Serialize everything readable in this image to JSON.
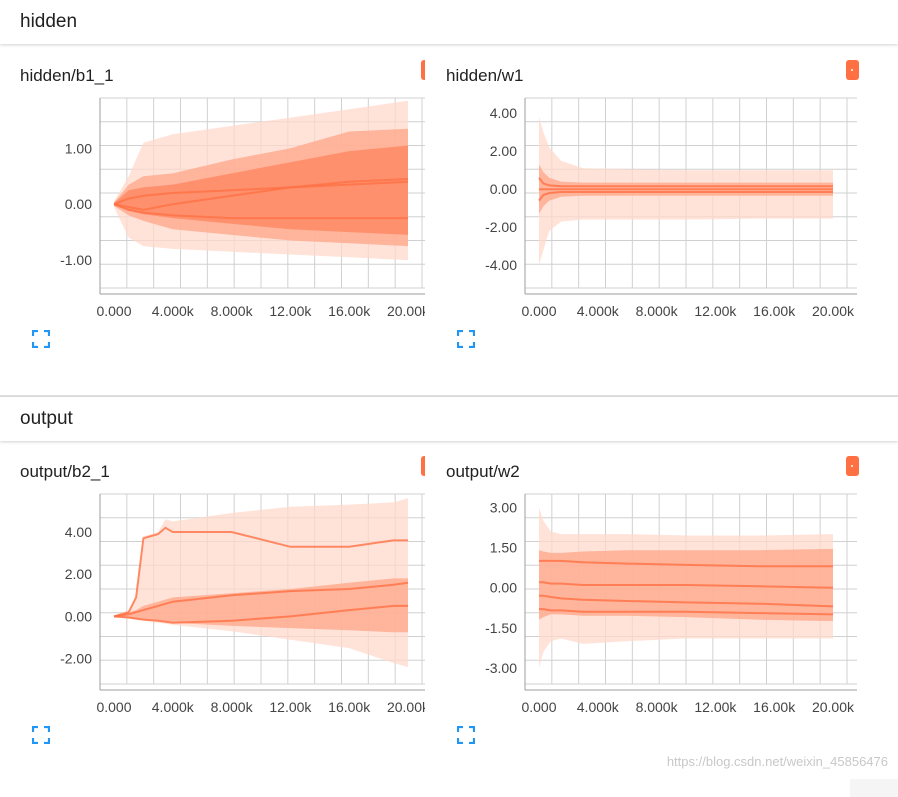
{
  "sections": [
    {
      "title": "hidden",
      "cards": [
        {
          "title": "hidden/b1_1",
          "chart_data": {
            "type": "area",
            "x_ticks": [
              "0.000",
              "4.000k",
              "8.000k",
              "12.00k",
              "16.00k",
              "20.00k"
            ],
            "y_ticks": [
              "1.00",
              "0.00",
              "-1.00"
            ],
            "ylim": [
              -1.5,
              1.9
            ],
            "xlim": [
              0,
              20000
            ],
            "x": [
              0,
              1000,
              2000,
              4000,
              8000,
              12000,
              16000,
              20000
            ],
            "bands": [
              {
                "lower": [
                  -0.05,
                  -0.6,
                  -0.75,
                  -0.8,
                  -0.85,
                  -0.9,
                  -0.95,
                  -1.0
                ],
                "upper": [
                  0.05,
                  0.5,
                  1.1,
                  1.25,
                  1.4,
                  1.55,
                  1.7,
                  1.85
                ]
              },
              {
                "lower": [
                  -0.03,
                  -0.2,
                  -0.3,
                  -0.45,
                  -0.55,
                  -0.65,
                  -0.7,
                  -0.75
                ],
                "upper": [
                  0.03,
                  0.35,
                  0.5,
                  0.55,
                  0.8,
                  1.0,
                  1.3,
                  1.35
                ]
              },
              {
                "lower": [
                  -0.02,
                  -0.12,
                  -0.18,
                  -0.25,
                  -0.35,
                  -0.45,
                  -0.5,
                  -0.55
                ],
                "upper": [
                  0.02,
                  0.25,
                  0.3,
                  0.35,
                  0.55,
                  0.75,
                  0.95,
                  1.05
                ]
              }
            ],
            "lines": [
              [
                0.0,
                -0.05,
                -0.1,
                0.0,
                0.15,
                0.3,
                0.4,
                0.45
              ],
              [
                0.0,
                -0.1,
                -0.15,
                -0.2,
                -0.25,
                -0.25,
                -0.25,
                -0.25
              ],
              [
                0.0,
                0.1,
                0.15,
                0.2,
                0.25,
                0.3,
                0.35,
                0.4
              ]
            ]
          }
        },
        {
          "title": "hidden/w1",
          "chart_data": {
            "type": "area",
            "x_ticks": [
              "0.000",
              "4.000k",
              "8.000k",
              "12.00k",
              "16.00k",
              "20.00k"
            ],
            "y_ticks": [
              "4.00",
              "2.00",
              "0.00",
              "-2.00",
              "-4.00"
            ],
            "ylim": [
              -5.2,
              4.8
            ],
            "xlim": [
              0,
              20000
            ],
            "x": [
              0,
              300,
              700,
              1500,
              3000,
              6000,
              10000,
              15000,
              20000
            ],
            "bands": [
              {
                "lower": [
                  -4.0,
                  -3.2,
                  -2.2,
                  -1.7,
                  -1.6,
                  -1.6,
                  -1.6,
                  -1.55,
                  -1.55
                ],
                "upper": [
                  3.8,
                  3.0,
                  2.2,
                  1.5,
                  1.1,
                  1.05,
                  1.0,
                  1.0,
                  1.0
                ]
              },
              {
                "lower": [
                  -1.3,
                  -0.9,
                  -0.6,
                  -0.4,
                  -0.35,
                  -0.35,
                  -0.35,
                  -0.35,
                  -0.35
                ],
                "upper": [
                  1.3,
                  0.9,
                  0.6,
                  0.4,
                  0.35,
                  0.35,
                  0.35,
                  0.35,
                  0.35
                ]
              }
            ],
            "lines": [
              [
                0.0,
                0.0,
                0.0,
                0.0,
                0.0,
                0.0,
                0.0,
                0.0,
                0.0
              ],
              [
                0.6,
                0.3,
                0.2,
                0.15,
                0.15,
                0.15,
                0.15,
                0.15,
                0.15
              ],
              [
                -0.6,
                -0.3,
                -0.2,
                -0.15,
                -0.15,
                -0.15,
                -0.15,
                -0.15,
                -0.15
              ]
            ]
          }
        }
      ]
    },
    {
      "title": "output",
      "cards": [
        {
          "title": "output/b2_1",
          "chart_data": {
            "type": "area",
            "x_ticks": [
              "0.000",
              "4.000k",
              "8.000k",
              "12.00k",
              "16.00k",
              "20.00k"
            ],
            "y_ticks": [
              "4.00",
              "2.00",
              "0.00",
              "-2.00"
            ],
            "ylim": [
              -3.2,
              5.8
            ],
            "xlim": [
              0,
              20000
            ],
            "x": [
              0,
              1000,
              1500,
              2000,
              3000,
              3500,
              4000,
              8000,
              12000,
              16000,
              19000,
              20000
            ],
            "bands": [
              {
                "lower": [
                  -0.05,
                  -0.1,
                  -0.15,
                  -0.2,
                  -0.3,
                  -0.35,
                  -0.4,
                  -0.7,
                  -1.1,
                  -1.5,
                  -2.2,
                  -2.4
                ],
                "upper": [
                  0.05,
                  0.3,
                  1.0,
                  3.8,
                  4.0,
                  4.6,
                  4.5,
                  4.9,
                  5.2,
                  5.3,
                  5.4,
                  5.6
                ]
              },
              {
                "lower": [
                  -0.03,
                  -0.08,
                  -0.12,
                  -0.15,
                  -0.2,
                  -0.25,
                  -0.3,
                  -0.45,
                  -0.55,
                  -0.65,
                  -0.75,
                  -0.75
                ],
                "upper": [
                  0.03,
                  0.2,
                  0.3,
                  0.5,
                  0.7,
                  0.8,
                  0.9,
                  1.1,
                  1.3,
                  1.6,
                  1.8,
                  1.8
                ]
              }
            ],
            "lines": [
              [
                0.0,
                0.2,
                0.9,
                3.7,
                3.9,
                4.2,
                4.0,
                4.0,
                3.3,
                3.3,
                3.6,
                3.6
              ],
              [
                0.0,
                0.1,
                0.2,
                0.3,
                0.5,
                0.6,
                0.7,
                1.0,
                1.2,
                1.3,
                1.5,
                1.6
              ],
              [
                0.0,
                -0.05,
                -0.1,
                -0.15,
                -0.2,
                -0.25,
                -0.3,
                -0.2,
                0.0,
                0.3,
                0.5,
                0.5
              ]
            ]
          }
        },
        {
          "title": "output/w2",
          "chart_data": {
            "type": "area",
            "x_ticks": [
              "0.000",
              "4.000k",
              "8.000k",
              "12.00k",
              "16.00k",
              "20.00k"
            ],
            "y_ticks": [
              "3.00",
              "1.50",
              "0.00",
              "-1.50",
              "-3.00"
            ],
            "ylim": [
              -3.6,
              3.5
            ],
            "xlim": [
              0,
              20000
            ],
            "x": [
              0,
              300,
              800,
              1500,
              3000,
              6000,
              10000,
              15000,
              20000
            ],
            "bands": [
              {
                "lower": [
                  -3.0,
                  -2.4,
                  -2.0,
                  -1.9,
                  -2.1,
                  -2.0,
                  -1.9,
                  -1.9,
                  -1.9
                ],
                "upper": [
                  3.0,
                  2.5,
                  2.1,
                  2.0,
                  2.0,
                  2.0,
                  1.95,
                  1.95,
                  2.0
                ]
              },
              {
                "lower": [
                  -1.2,
                  -1.1,
                  -1.0,
                  -1.0,
                  -1.05,
                  -1.05,
                  -1.1,
                  -1.2,
                  -1.25
                ],
                "upper": [
                  1.4,
                  1.35,
                  1.3,
                  1.3,
                  1.35,
                  1.4,
                  1.4,
                  1.4,
                  1.45
                ]
              }
            ],
            "lines": [
              [
                1.0,
                1.0,
                1.0,
                1.0,
                0.95,
                0.9,
                0.85,
                0.8,
                0.8
              ],
              [
                0.2,
                0.2,
                0.15,
                0.15,
                0.1,
                0.1,
                0.1,
                0.05,
                0.0
              ],
              [
                -0.3,
                -0.3,
                -0.35,
                -0.4,
                -0.45,
                -0.5,
                -0.55,
                -0.6,
                -0.7
              ],
              [
                -0.8,
                -0.8,
                -0.85,
                -0.85,
                -0.9,
                -0.9,
                -0.9,
                -0.95,
                -1.0
              ]
            ]
          }
        }
      ]
    }
  ],
  "colors": {
    "band_outer": "#ffd9cc",
    "band_mid": "#ffab91",
    "band_inner": "#ff8a65",
    "line": "#ff7043",
    "grid": "#d0d0d0",
    "axis": "#9e9e9e",
    "expand_icon": "#2196f3"
  },
  "icons": {
    "menu": "vertical-dots-icon",
    "expand": "fullscreen-icon"
  },
  "watermark": "https://blog.csdn.net/weixin_45856476"
}
